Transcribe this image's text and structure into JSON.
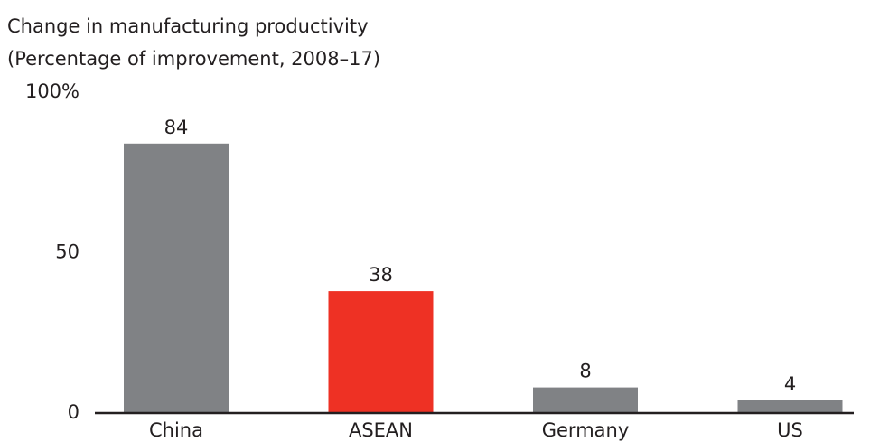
{
  "chart_data": {
    "type": "bar",
    "title": "Change in manufacturing productivity",
    "subtitle": "(Percentage of improvement, 2008–17)",
    "categories": [
      "China",
      "ASEAN",
      "Germany",
      "US"
    ],
    "values": [
      84,
      38,
      8,
      4
    ],
    "colors": [
      "#808285",
      "#ee3124",
      "#808285",
      "#808285"
    ],
    "ylim": [
      0,
      100
    ],
    "yticks": [
      0,
      50,
      {
        "value": 100,
        "label": "100%"
      }
    ],
    "grid": false
  }
}
